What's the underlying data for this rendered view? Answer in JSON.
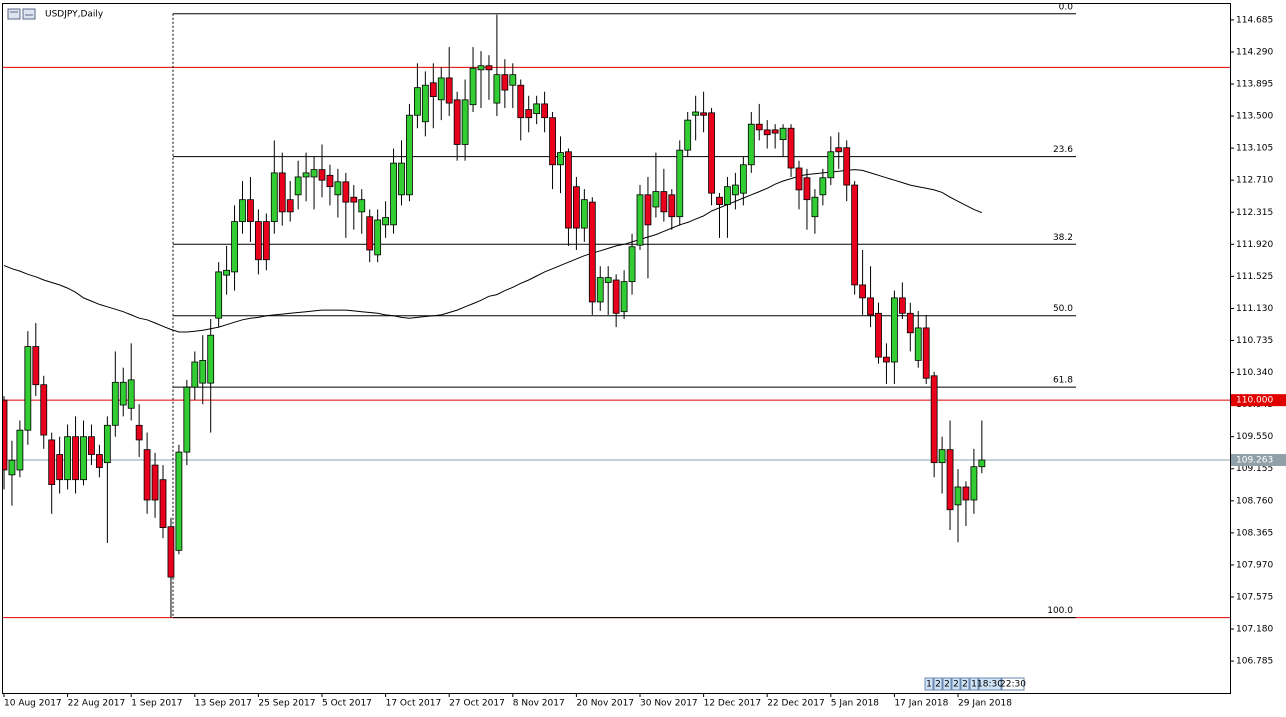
{
  "chart_data": {
    "type": "candlestick",
    "title": "USDJPY,Daily",
    "categories": [
      "10 Aug 2017",
      null,
      null,
      null,
      null,
      null,
      null,
      null,
      "22 Aug 2017",
      null,
      null,
      null,
      null,
      null,
      null,
      null,
      "1 Sep 2017",
      null,
      null,
      null,
      null,
      null,
      null,
      null,
      "13 Sep 2017",
      null,
      null,
      null,
      null,
      null,
      null,
      null,
      "25 Sep 2017",
      null,
      null,
      null,
      null,
      null,
      null,
      null,
      "5 Oct 2017",
      null,
      null,
      null,
      null,
      null,
      null,
      null,
      "17 Oct 2017",
      null,
      null,
      null,
      null,
      null,
      null,
      null,
      "27 Oct 2017",
      null,
      null,
      null,
      null,
      null,
      null,
      null,
      "8 Nov 2017",
      null,
      null,
      null,
      null,
      null,
      null,
      null,
      "20 Nov 2017",
      null,
      null,
      null,
      null,
      null,
      null,
      null,
      "30 Nov 2017",
      null,
      null,
      null,
      null,
      null,
      null,
      null,
      "12 Dec 2017",
      null,
      null,
      null,
      null,
      null,
      null,
      null,
      "22 Dec 2017",
      null,
      null,
      null,
      null,
      null,
      null,
      null,
      "5 Jan 2018",
      null,
      null,
      null,
      null,
      null,
      null,
      null,
      "17 Jan 2018",
      null,
      null,
      null,
      null,
      null,
      null,
      null,
      "29 Jan 2018",
      null,
      null,
      null
    ],
    "ohlc": [
      [
        110.0,
        110.05,
        108.9,
        109.14
      ],
      [
        109.08,
        109.5,
        108.7,
        109.26
      ],
      [
        109.14,
        109.75,
        109.05,
        109.63
      ],
      [
        109.63,
        110.85,
        109.45,
        110.66
      ],
      [
        110.66,
        110.95,
        110.05,
        110.19
      ],
      [
        110.19,
        110.3,
        109.4,
        109.57
      ],
      [
        109.51,
        109.6,
        108.6,
        108.96
      ],
      [
        109.33,
        109.55,
        108.85,
        109.02
      ],
      [
        109.02,
        109.7,
        108.9,
        109.55
      ],
      [
        109.55,
        109.8,
        108.85,
        109.02
      ],
      [
        109.02,
        109.75,
        108.95,
        109.55
      ],
      [
        109.55,
        109.7,
        109.2,
        109.33
      ],
      [
        109.33,
        109.45,
        109.05,
        109.17
      ],
      [
        109.23,
        109.8,
        108.24,
        109.69
      ],
      [
        109.69,
        110.6,
        109.55,
        110.22
      ],
      [
        109.94,
        110.4,
        109.8,
        110.22
      ],
      [
        109.9,
        110.7,
        109.75,
        110.25
      ],
      [
        109.69,
        109.95,
        109.3,
        109.51
      ],
      [
        109.39,
        109.6,
        108.6,
        108.77
      ],
      [
        109.2,
        109.35,
        108.55,
        108.77
      ],
      [
        109.02,
        109.2,
        108.3,
        108.43
      ],
      [
        108.44,
        108.55,
        107.32,
        107.82
      ],
      [
        108.15,
        109.45,
        108.1,
        109.36
      ],
      [
        109.36,
        110.25,
        109.2,
        110.16
      ],
      [
        110.16,
        110.6,
        110.0,
        110.47
      ],
      [
        110.21,
        110.8,
        109.95,
        110.49
      ],
      [
        110.21,
        111.0,
        109.6,
        110.8
      ],
      [
        111.01,
        111.7,
        110.9,
        111.58
      ],
      [
        111.54,
        111.9,
        111.3,
        111.6
      ],
      [
        111.58,
        112.4,
        111.35,
        112.2
      ],
      [
        112.2,
        112.7,
        112.05,
        112.47
      ],
      [
        112.47,
        112.75,
        111.95,
        112.2
      ],
      [
        112.2,
        112.35,
        111.55,
        111.73
      ],
      [
        112.2,
        112.3,
        111.6,
        111.73
      ],
      [
        112.2,
        113.2,
        112.05,
        112.8
      ],
      [
        112.8,
        113.05,
        112.15,
        112.32
      ],
      [
        112.47,
        112.7,
        112.2,
        112.32
      ],
      [
        112.53,
        112.95,
        112.35,
        112.75
      ],
      [
        112.75,
        113.05,
        112.45,
        112.8
      ],
      [
        112.75,
        113.0,
        112.35,
        112.84
      ],
      [
        112.84,
        113.15,
        112.5,
        112.71
      ],
      [
        112.77,
        112.9,
        112.4,
        112.63
      ],
      [
        112.53,
        112.85,
        112.25,
        112.69
      ],
      [
        112.69,
        112.8,
        112.0,
        112.44
      ],
      [
        112.5,
        112.65,
        112.1,
        112.44
      ],
      [
        112.32,
        112.6,
        112.05,
        112.47
      ],
      [
        112.26,
        112.35,
        111.7,
        111.85
      ],
      [
        111.79,
        112.35,
        111.7,
        112.22
      ],
      [
        112.16,
        112.45,
        112.0,
        112.25
      ],
      [
        112.16,
        113.1,
        112.05,
        112.92
      ],
      [
        112.53,
        113.2,
        112.4,
        112.92
      ],
      [
        112.53,
        113.65,
        112.45,
        113.51
      ],
      [
        113.51,
        114.15,
        113.35,
        113.85
      ],
      [
        113.43,
        114.05,
        113.25,
        113.88
      ],
      [
        113.91,
        114.15,
        113.35,
        113.74
      ],
      [
        113.7,
        114.1,
        113.45,
        113.97
      ],
      [
        113.97,
        114.35,
        113.5,
        113.66
      ],
      [
        113.7,
        113.8,
        112.95,
        113.15
      ],
      [
        113.15,
        113.95,
        112.95,
        113.7
      ],
      [
        113.64,
        114.35,
        113.55,
        114.09
      ],
      [
        114.07,
        114.3,
        113.6,
        114.12
      ],
      [
        114.12,
        114.25,
        113.7,
        114.07
      ],
      [
        113.66,
        114.75,
        113.5,
        114.01
      ],
      [
        114.01,
        114.2,
        113.6,
        113.82
      ],
      [
        113.88,
        114.15,
        113.6,
        114.01
      ],
      [
        113.88,
        113.95,
        113.2,
        113.48
      ],
      [
        113.58,
        113.75,
        113.3,
        113.48
      ],
      [
        113.53,
        113.75,
        113.4,
        113.65
      ],
      [
        113.65,
        113.8,
        113.3,
        113.48
      ],
      [
        113.48,
        113.55,
        112.6,
        112.9
      ],
      [
        112.9,
        113.25,
        112.55,
        113.05
      ],
      [
        113.06,
        113.1,
        111.9,
        112.12
      ],
      [
        112.63,
        112.75,
        111.85,
        112.12
      ],
      [
        112.12,
        112.6,
        111.95,
        112.47
      ],
      [
        112.44,
        112.5,
        111.05,
        111.21
      ],
      [
        111.21,
        111.65,
        111.1,
        111.51
      ],
      [
        111.45,
        111.65,
        111.05,
        111.51
      ],
      [
        111.48,
        111.55,
        110.9,
        111.07
      ],
      [
        111.09,
        111.6,
        111.0,
        111.46
      ],
      [
        111.46,
        112.05,
        111.3,
        111.89
      ],
      [
        111.91,
        112.65,
        111.85,
        112.53
      ],
      [
        112.53,
        112.75,
        111.5,
        112.16
      ],
      [
        112.38,
        113.05,
        112.25,
        112.57
      ],
      [
        112.57,
        112.85,
        112.2,
        112.32
      ],
      [
        112.53,
        112.6,
        112.1,
        112.26
      ],
      [
        112.26,
        113.2,
        112.15,
        113.08
      ],
      [
        113.08,
        113.55,
        113.0,
        113.45
      ],
      [
        113.51,
        113.75,
        113.2,
        113.55
      ],
      [
        113.54,
        113.8,
        113.3,
        113.51
      ],
      [
        113.54,
        113.6,
        112.4,
        112.55
      ],
      [
        112.5,
        112.55,
        112.0,
        112.41
      ],
      [
        112.41,
        112.75,
        112.0,
        112.63
      ],
      [
        112.53,
        112.8,
        112.35,
        112.65
      ],
      [
        112.55,
        113.0,
        112.4,
        112.9
      ],
      [
        112.9,
        113.55,
        112.8,
        113.4
      ],
      [
        113.4,
        113.65,
        113.2,
        113.33
      ],
      [
        113.33,
        113.45,
        113.1,
        113.27
      ],
      [
        113.33,
        113.4,
        113.1,
        113.29
      ],
      [
        113.21,
        113.4,
        113.0,
        113.35
      ],
      [
        113.35,
        113.4,
        112.75,
        112.86
      ],
      [
        112.86,
        112.95,
        112.35,
        112.59
      ],
      [
        112.74,
        112.85,
        112.1,
        112.47
      ],
      [
        112.26,
        112.6,
        112.05,
        112.5
      ],
      [
        112.53,
        112.85,
        112.4,
        112.74
      ],
      [
        112.74,
        113.25,
        112.65,
        113.06
      ],
      [
        113.11,
        113.3,
        112.85,
        113.06
      ],
      [
        113.11,
        113.2,
        112.45,
        112.65
      ],
      [
        112.65,
        112.7,
        111.3,
        111.42
      ],
      [
        111.42,
        111.85,
        111.05,
        111.26
      ],
      [
        111.26,
        111.65,
        110.9,
        111.05
      ],
      [
        111.07,
        111.2,
        110.45,
        110.53
      ],
      [
        110.53,
        110.7,
        110.2,
        110.47
      ],
      [
        110.47,
        111.35,
        110.2,
        111.26
      ],
      [
        111.26,
        111.45,
        111.0,
        111.07
      ],
      [
        111.07,
        111.2,
        110.6,
        110.83
      ],
      [
        110.49,
        111.1,
        110.4,
        110.89
      ],
      [
        110.89,
        111.05,
        110.2,
        110.27
      ],
      [
        110.3,
        110.35,
        109.05,
        109.23
      ],
      [
        109.23,
        109.55,
        108.85,
        109.39
      ],
      [
        109.39,
        109.75,
        108.4,
        108.65
      ],
      [
        108.71,
        109.15,
        108.25,
        108.93
      ],
      [
        108.93,
        109.0,
        108.45,
        108.77
      ],
      [
        108.77,
        109.4,
        108.6,
        109.18
      ],
      [
        109.18,
        109.75,
        109.1,
        109.263
      ]
    ],
    "up_color": "#32cd32",
    "down_color": "#e8001c",
    "moving_average": {
      "color": "#000000",
      "values": [
        111.66,
        111.62,
        111.59,
        111.55,
        111.52,
        111.48,
        111.45,
        111.42,
        111.38,
        111.33,
        111.26,
        111.22,
        111.18,
        111.15,
        111.12,
        111.09,
        111.05,
        111.01,
        110.99,
        110.95,
        110.91,
        110.87,
        110.84,
        110.84,
        110.85,
        110.86,
        110.88,
        110.9,
        110.93,
        110.96,
        110.99,
        111.01,
        111.02,
        111.04,
        111.05,
        111.06,
        111.07,
        111.08,
        111.09,
        111.1,
        111.11,
        111.11,
        111.11,
        111.11,
        111.1,
        111.09,
        111.08,
        111.07,
        111.05,
        111.04,
        111.02,
        111.01,
        111.02,
        111.03,
        111.04,
        111.05,
        111.08,
        111.11,
        111.15,
        111.19,
        111.23,
        111.28,
        111.3,
        111.35,
        111.39,
        111.44,
        111.48,
        111.53,
        111.58,
        111.62,
        111.66,
        111.7,
        111.74,
        111.78,
        111.81,
        111.84,
        111.87,
        111.9,
        111.92,
        111.95,
        111.98,
        112.01,
        112.04,
        112.08,
        112.12,
        112.16,
        112.19,
        112.23,
        112.27,
        112.33,
        112.37,
        112.41,
        112.45,
        112.49,
        112.53,
        112.57,
        112.61,
        112.66,
        112.7,
        112.73,
        112.76,
        112.78,
        112.79,
        112.8,
        112.81,
        112.82,
        112.83,
        112.84,
        112.83,
        112.8,
        112.77,
        112.74,
        112.71,
        112.68,
        112.65,
        112.63,
        112.61,
        112.59,
        112.56,
        112.5,
        112.45,
        112.4,
        112.35,
        112.31
      ]
    },
    "fibonacci": [
      {
        "label": "0.0",
        "price": 114.76
      },
      {
        "label": "23.6",
        "price": 113.0
      },
      {
        "label": "38.2",
        "price": 111.92
      },
      {
        "label": "50.0",
        "price": 111.04
      },
      {
        "label": "61.8",
        "price": 110.16
      },
      {
        "label": "100.0",
        "price": 107.32
      }
    ],
    "horizontal_lines": [
      {
        "price": 114.1,
        "color": "#e00000"
      },
      {
        "price": {
          "value": 110.0,
          "label": "110.000"
        },
        "color": "#e00000"
      },
      {
        "price": 107.32,
        "color": "#e00000"
      }
    ],
    "current_price": {
      "value": 109.263,
      "label": "109.263"
    },
    "ylim": [
      106.392,
      114.93
    ],
    "yticks": [
      {
        "value": 114.685,
        "label": "114.685"
      },
      {
        "value": 114.29,
        "label": "114.290"
      },
      {
        "value": 113.895,
        "label": "113.895"
      },
      {
        "value": 113.5,
        "label": "113.500"
      },
      {
        "value": 113.105,
        "label": "113.105"
      },
      {
        "value": 112.71,
        "label": "112.710"
      },
      {
        "value": 112.315,
        "label": "112.315"
      },
      {
        "value": 111.92,
        "label": "111.920"
      },
      {
        "value": 111.525,
        "label": "111.525"
      },
      {
        "value": 111.13,
        "label": "111.130"
      },
      {
        "value": 110.735,
        "label": "110.735"
      },
      {
        "value": 110.34,
        "label": "110.340"
      },
      {
        "value": 109.945,
        "label": "109.945"
      },
      {
        "value": 109.55,
        "label": "109.550"
      },
      {
        "value": 109.155,
        "label": "109.155"
      },
      {
        "value": 108.76,
        "label": "108.760"
      },
      {
        "value": 108.365,
        "label": "108.365"
      },
      {
        "value": 107.97,
        "label": "107.970"
      },
      {
        "value": 107.575,
        "label": "107.575"
      },
      {
        "value": 107.18,
        "label": "107.180"
      },
      {
        "value": 106.785,
        "label": "106.785"
      }
    ],
    "status_boxes": [
      "1",
      "2",
      "2",
      "2",
      "2",
      "1",
      "18:30",
      "22:30"
    ]
  }
}
